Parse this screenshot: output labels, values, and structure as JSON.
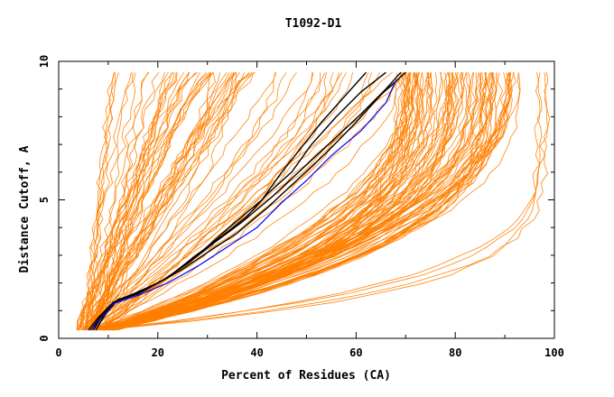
{
  "chart_data": {
    "type": "line",
    "title": "T1092-D1",
    "xlabel": "Percent of Residues (CA)",
    "ylabel": "Distance Cutoff, A",
    "xlim": [
      0,
      100
    ],
    "ylim": [
      0,
      10
    ],
    "x_ticks": [
      "0",
      "20",
      "40",
      "60",
      "80",
      "100"
    ],
    "y_ticks": [
      "0",
      "5",
      "10"
    ],
    "colors": {
      "background_models": "#ff8000",
      "highlight": "#000000",
      "reference": "#0000ff"
    },
    "background_families": [
      {
        "name": "steep",
        "count": 40,
        "x_at_min": [
          3.5,
          8
        ],
        "x_at_max": [
          11,
          40
        ],
        "shape": [
          0.75,
          1.0
        ]
      },
      {
        "name": "middle",
        "count": 30,
        "x_at_min": [
          4,
          9
        ],
        "x_at_max": [
          30,
          70
        ],
        "shape": [
          1.0,
          1.7
        ]
      },
      {
        "name": "shallow",
        "count": 90,
        "x_at_min": [
          6,
          12
        ],
        "x_at_max": [
          68,
          93
        ],
        "shape": [
          2.0,
          3.4
        ]
      },
      {
        "name": "rightmost",
        "count": 4,
        "x_at_min": [
          7,
          10
        ],
        "x_at_max": [
          95,
          100
        ],
        "shape": [
          4.5,
          7.0
        ]
      }
    ],
    "series": [
      {
        "name": "model-black-1",
        "color": "#000000",
        "x": [
          6.5,
          8.5,
          11,
          15,
          20,
          25,
          30,
          36,
          42,
          48,
          54,
          60,
          65,
          70
        ],
        "y": [
          0.3,
          0.8,
          1.3,
          1.6,
          2.0,
          2.5,
          3.1,
          3.8,
          4.7,
          5.7,
          6.7,
          7.8,
          8.8,
          9.6
        ]
      },
      {
        "name": "model-black-2",
        "color": "#000000",
        "x": [
          7,
          9,
          11.5,
          16,
          21,
          26,
          31,
          37,
          43,
          49,
          55,
          61,
          66,
          69
        ],
        "y": [
          0.3,
          0.85,
          1.35,
          1.65,
          2.1,
          2.7,
          3.4,
          4.2,
          5.1,
          6.1,
          7.1,
          8.1,
          9.0,
          9.6
        ]
      },
      {
        "name": "model-black-3",
        "color": "#000000",
        "x": [
          7.5,
          9.5,
          12,
          17,
          22,
          27,
          33,
          38,
          42,
          47,
          51,
          56,
          61,
          66
        ],
        "y": [
          0.3,
          0.9,
          1.4,
          1.7,
          2.2,
          2.9,
          3.7,
          4.4,
          5.2,
          6.0,
          7.0,
          8.0,
          8.9,
          9.6
        ]
      },
      {
        "name": "model-black-4",
        "color": "#000000",
        "x": [
          6,
          8,
          11,
          16,
          22,
          28,
          35,
          41,
          45,
          49,
          53,
          57,
          61,
          62
        ],
        "y": [
          0.3,
          0.75,
          1.3,
          1.6,
          2.2,
          3.0,
          4.1,
          5.0,
          6.0,
          6.9,
          7.8,
          8.6,
          9.4,
          9.6
        ]
      },
      {
        "name": "reference-blue",
        "color": "#0000ff",
        "x": [
          6.5,
          9,
          11,
          16,
          22,
          28,
          34,
          40,
          45,
          50,
          55,
          61,
          66,
          68
        ],
        "y": [
          0.3,
          0.8,
          1.25,
          1.55,
          2.0,
          2.6,
          3.3,
          4.0,
          4.9,
          5.7,
          6.6,
          7.5,
          8.5,
          9.3
        ]
      }
    ]
  }
}
